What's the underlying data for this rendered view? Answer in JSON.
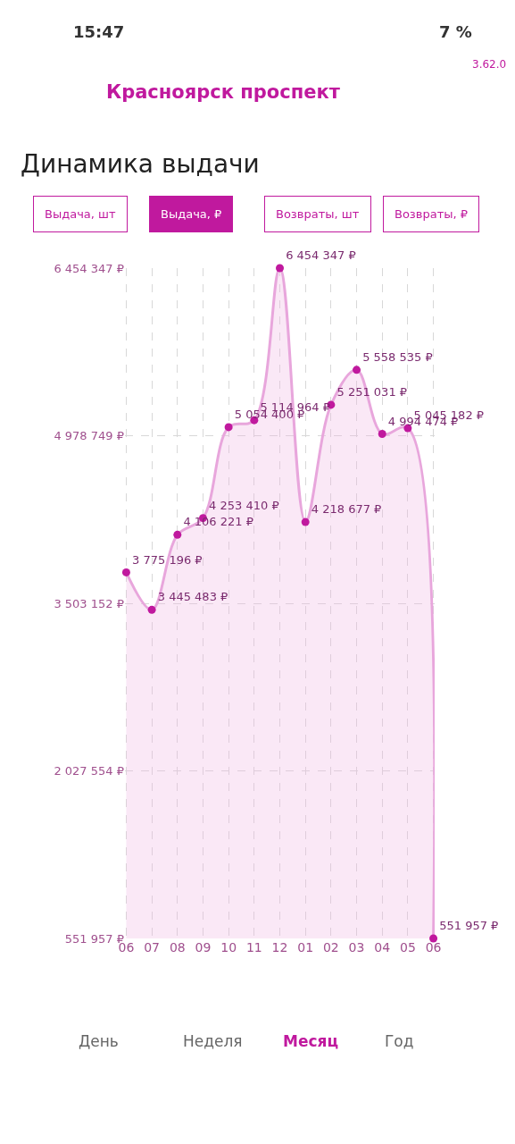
{
  "chart_data": {
    "type": "area",
    "title": "Динамика выдачи",
    "categories": [
      "06",
      "07",
      "08",
      "09",
      "10",
      "11",
      "12",
      "01",
      "02",
      "03",
      "04",
      "05",
      "06"
    ],
    "series": [
      {
        "color": "#e8a6dc",
        "values": [
          3775196,
          3445483,
          4106221,
          4253410,
          5054400,
          5114964,
          6454347,
          4218677,
          5251031,
          5558535,
          4994474,
          5045182,
          551957
        ],
        "value_labels": [
          "3 775 196 ₽",
          "3 445 483 ₽",
          "4 106 221 ₽",
          "4 253 410 ₽",
          "5 054 400 ₽",
          "5 114 964 ₽",
          "6 454 347 ₽",
          "4 218 677 ₽",
          "5 251 031 ₽",
          "5 558 535 ₽",
          "4 994 474 ₽",
          "5 045 182 ₽",
          "551 957 ₽"
        ]
      }
    ],
    "ylim": [
      551957,
      6454347
    ],
    "yticks": [
      {
        "value": 551957,
        "label": "551 957 ₽"
      },
      {
        "value": 2027554,
        "label": "2 027 554 ₽"
      },
      {
        "value": 3503152,
        "label": "3 503 152 ₽"
      },
      {
        "value": 4978749,
        "label": "4 978 749 ₽"
      },
      {
        "value": 6454347,
        "label": "6 454 347 ₽"
      }
    ],
    "grid": true,
    "marker": "circle",
    "annotations": [
      "15:47",
      "7 %",
      "3.62.0",
      "Красноярск проспект",
      "Выдача, шт",
      "Выдача, ₽",
      "Возвраты, шт",
      "Возвраты, ₽",
      "День",
      "Неделя",
      "Месяц",
      "Год"
    ]
  }
}
